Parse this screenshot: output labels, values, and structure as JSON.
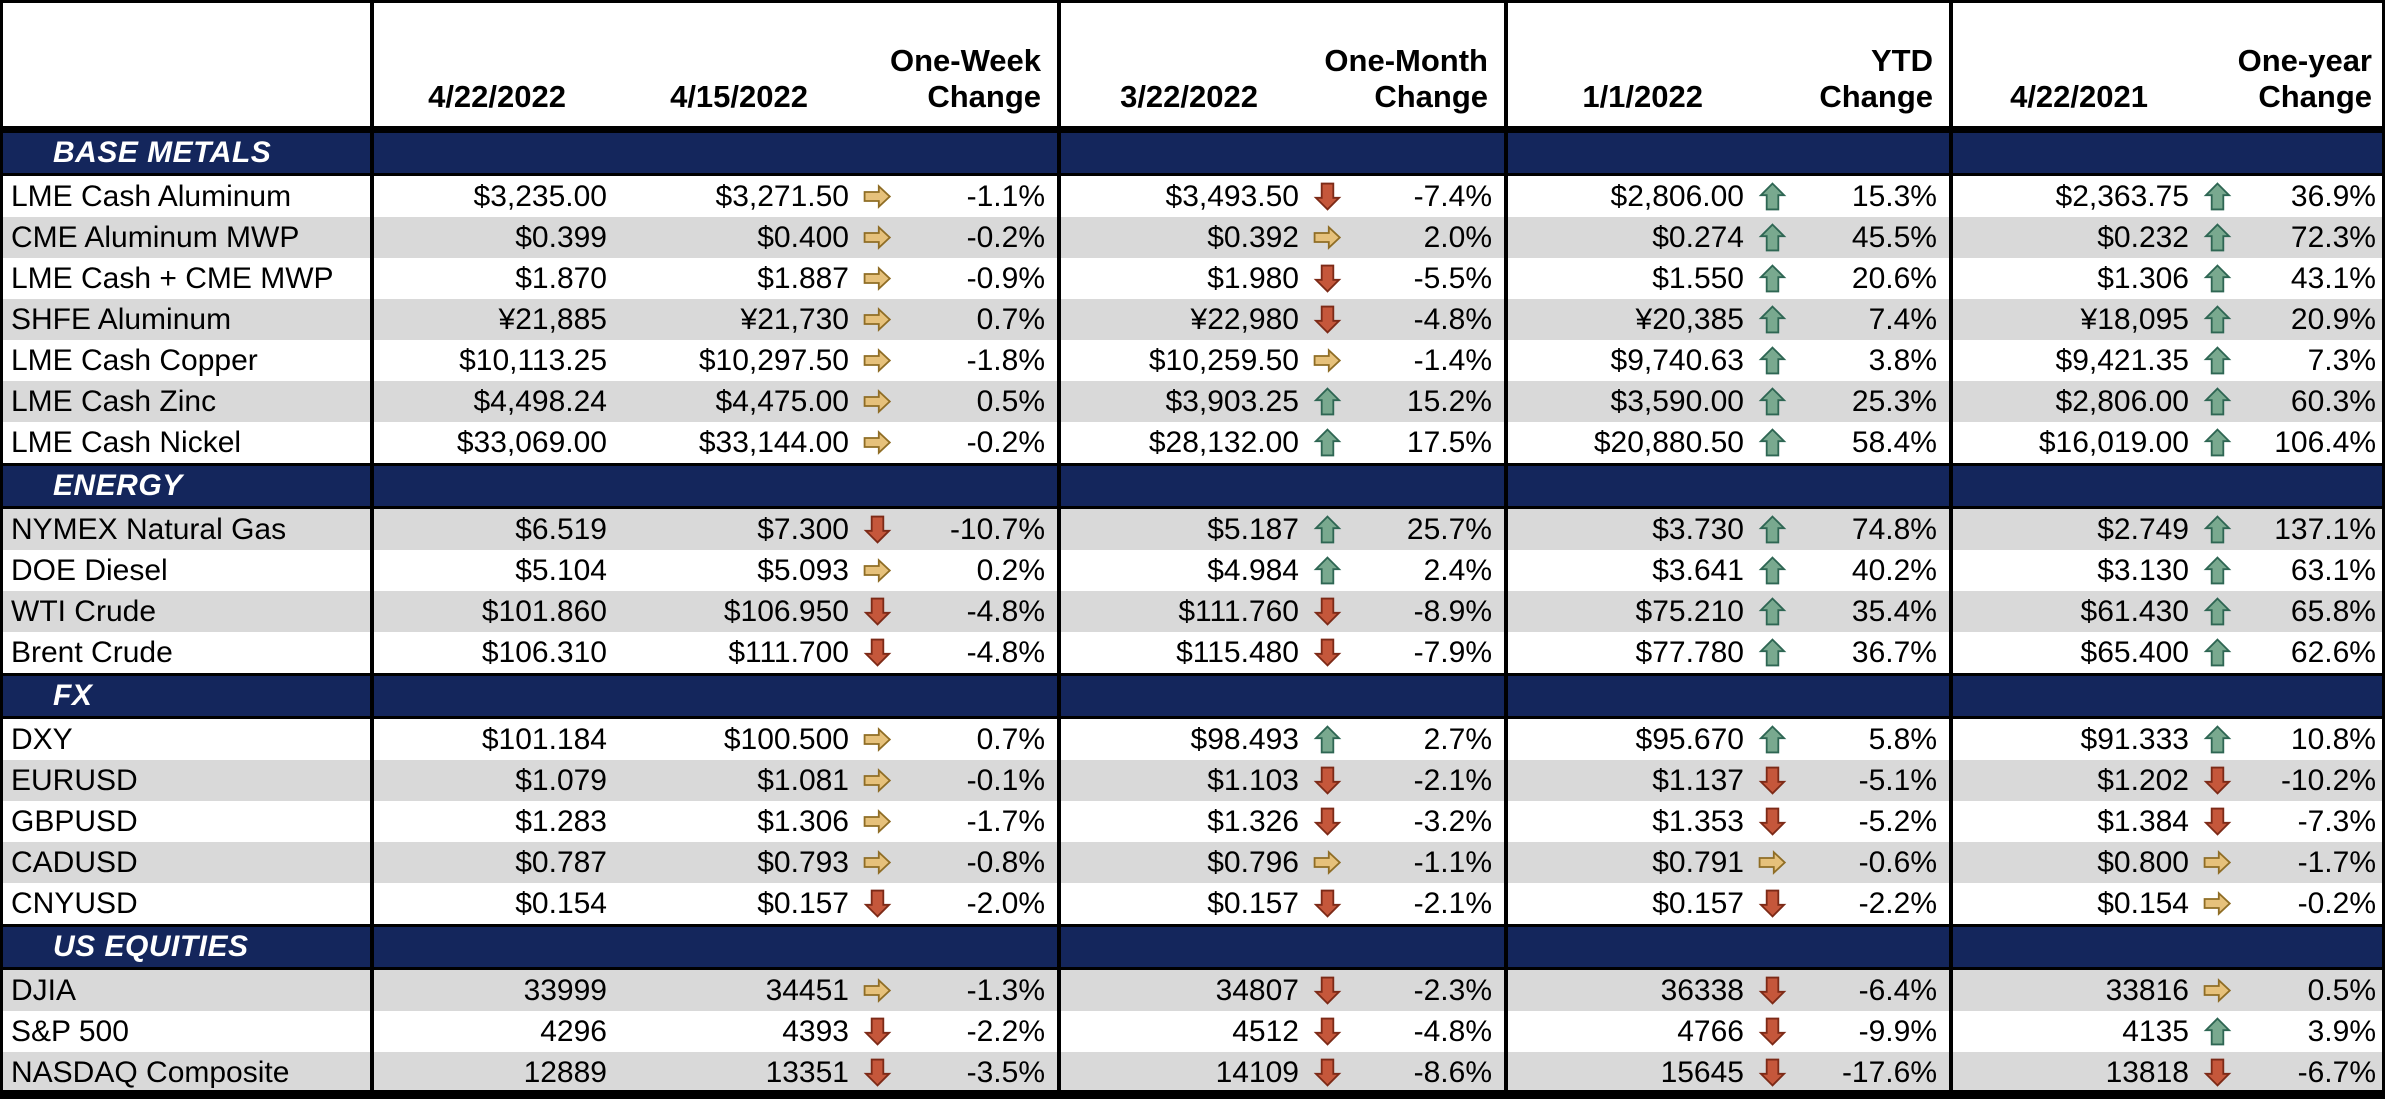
{
  "colors": {
    "section_bar": "#14265C",
    "row_alt_gray": "#D9D9D9",
    "row_white": "#FFFFFF",
    "border": "#000000",
    "arrow_up_fill": "#79A98F",
    "arrow_up_outline": "#2E6653",
    "arrow_down_fill": "#C5573B",
    "arrow_down_outline": "#7C2A17",
    "arrow_flat_fill": "#E6C17B",
    "arrow_flat_outline": "#8F6D25"
  },
  "chart_data": {
    "type": "table",
    "columns": [
      "",
      "4/22/2022",
      "4/15/2022",
      "One-Week Change",
      "3/22/2022",
      "One-Month Change",
      "1/1/2022",
      "YTD Change",
      "4/22/2021",
      "One-year Change"
    ],
    "sections": [
      {
        "label": "BASE METALS",
        "rows": [
          {
            "label": "LME Cash Aluminum",
            "shade": "white",
            "values": [
              "$3,235.00",
              "$3,271.50",
              "$3,493.50",
              "$2,806.00",
              "$2,363.75"
            ],
            "changes": [
              {
                "dir": "flat",
                "pct": "-1.1%"
              },
              {
                "dir": "down",
                "pct": "-7.4%"
              },
              {
                "dir": "up",
                "pct": "15.3%"
              },
              {
                "dir": "up",
                "pct": "36.9%"
              }
            ]
          },
          {
            "label": "CME Aluminum MWP",
            "shade": "gray",
            "values": [
              "$0.399",
              "$0.400",
              "$0.392",
              "$0.274",
              "$0.232"
            ],
            "changes": [
              {
                "dir": "flat",
                "pct": "-0.2%"
              },
              {
                "dir": "flat",
                "pct": "2.0%"
              },
              {
                "dir": "up",
                "pct": "45.5%"
              },
              {
                "dir": "up",
                "pct": "72.3%"
              }
            ]
          },
          {
            "label": "LME Cash + CME MWP",
            "shade": "white",
            "values": [
              "$1.870",
              "$1.887",
              "$1.980",
              "$1.550",
              "$1.306"
            ],
            "changes": [
              {
                "dir": "flat",
                "pct": "-0.9%"
              },
              {
                "dir": "down",
                "pct": "-5.5%"
              },
              {
                "dir": "up",
                "pct": "20.6%"
              },
              {
                "dir": "up",
                "pct": "43.1%"
              }
            ]
          },
          {
            "label": "SHFE Aluminum",
            "shade": "gray",
            "values": [
              "¥21,885",
              "¥21,730",
              "¥22,980",
              "¥20,385",
              "¥18,095"
            ],
            "changes": [
              {
                "dir": "flat",
                "pct": "0.7%"
              },
              {
                "dir": "down",
                "pct": "-4.8%"
              },
              {
                "dir": "up",
                "pct": "7.4%"
              },
              {
                "dir": "up",
                "pct": "20.9%"
              }
            ]
          },
          {
            "label": "LME Cash Copper",
            "shade": "white",
            "values": [
              "$10,113.25",
              "$10,297.50",
              "$10,259.50",
              "$9,740.63",
              "$9,421.35"
            ],
            "changes": [
              {
                "dir": "flat",
                "pct": "-1.8%"
              },
              {
                "dir": "flat",
                "pct": "-1.4%"
              },
              {
                "dir": "up",
                "pct": "3.8%"
              },
              {
                "dir": "up",
                "pct": "7.3%"
              }
            ]
          },
          {
            "label": "LME Cash Zinc",
            "shade": "gray",
            "values": [
              "$4,498.24",
              "$4,475.00",
              "$3,903.25",
              "$3,590.00",
              "$2,806.00"
            ],
            "changes": [
              {
                "dir": "flat",
                "pct": "0.5%"
              },
              {
                "dir": "up",
                "pct": "15.2%"
              },
              {
                "dir": "up",
                "pct": "25.3%"
              },
              {
                "dir": "up",
                "pct": "60.3%"
              }
            ]
          },
          {
            "label": "LME Cash Nickel",
            "shade": "white",
            "values": [
              "$33,069.00",
              "$33,144.00",
              "$28,132.00",
              "$20,880.50",
              "$16,019.00"
            ],
            "changes": [
              {
                "dir": "flat",
                "pct": "-0.2%"
              },
              {
                "dir": "up",
                "pct": "17.5%"
              },
              {
                "dir": "up",
                "pct": "58.4%"
              },
              {
                "dir": "up",
                "pct": "106.4%"
              }
            ]
          }
        ]
      },
      {
        "label": "ENERGY",
        "rows": [
          {
            "label": "NYMEX Natural Gas",
            "shade": "gray",
            "values": [
              "$6.519",
              "$7.300",
              "$5.187",
              "$3.730",
              "$2.749"
            ],
            "changes": [
              {
                "dir": "down",
                "pct": "-10.7%"
              },
              {
                "dir": "up",
                "pct": "25.7%"
              },
              {
                "dir": "up",
                "pct": "74.8%"
              },
              {
                "dir": "up",
                "pct": "137.1%"
              }
            ]
          },
          {
            "label": "DOE Diesel",
            "shade": "white",
            "values": [
              "$5.104",
              "$5.093",
              "$4.984",
              "$3.641",
              "$3.130"
            ],
            "changes": [
              {
                "dir": "flat",
                "pct": "0.2%"
              },
              {
                "dir": "up",
                "pct": "2.4%"
              },
              {
                "dir": "up",
                "pct": "40.2%"
              },
              {
                "dir": "up",
                "pct": "63.1%"
              }
            ]
          },
          {
            "label": "WTI Crude",
            "shade": "gray",
            "values": [
              "$101.860",
              "$106.950",
              "$111.760",
              "$75.210",
              "$61.430"
            ],
            "changes": [
              {
                "dir": "down",
                "pct": "-4.8%"
              },
              {
                "dir": "down",
                "pct": "-8.9%"
              },
              {
                "dir": "up",
                "pct": "35.4%"
              },
              {
                "dir": "up",
                "pct": "65.8%"
              }
            ]
          },
          {
            "label": "Brent Crude",
            "shade": "white",
            "values": [
              "$106.310",
              "$111.700",
              "$115.480",
              "$77.780",
              "$65.400"
            ],
            "changes": [
              {
                "dir": "down",
                "pct": "-4.8%"
              },
              {
                "dir": "down",
                "pct": "-7.9%"
              },
              {
                "dir": "up",
                "pct": "36.7%"
              },
              {
                "dir": "up",
                "pct": "62.6%"
              }
            ]
          }
        ]
      },
      {
        "label": "FX",
        "rows": [
          {
            "label": "DXY",
            "shade": "white",
            "values": [
              "$101.184",
              "$100.500",
              "$98.493",
              "$95.670",
              "$91.333"
            ],
            "changes": [
              {
                "dir": "flat",
                "pct": "0.7%"
              },
              {
                "dir": "up",
                "pct": "2.7%"
              },
              {
                "dir": "up",
                "pct": "5.8%"
              },
              {
                "dir": "up",
                "pct": "10.8%"
              }
            ]
          },
          {
            "label": "EURUSD",
            "shade": "gray",
            "values": [
              "$1.079",
              "$1.081",
              "$1.103",
              "$1.137",
              "$1.202"
            ],
            "changes": [
              {
                "dir": "flat",
                "pct": "-0.1%"
              },
              {
                "dir": "down",
                "pct": "-2.1%"
              },
              {
                "dir": "down",
                "pct": "-5.1%"
              },
              {
                "dir": "down",
                "pct": "-10.2%"
              }
            ]
          },
          {
            "label": "GBPUSD",
            "shade": "white",
            "values": [
              "$1.283",
              "$1.306",
              "$1.326",
              "$1.353",
              "$1.384"
            ],
            "changes": [
              {
                "dir": "flat",
                "pct": "-1.7%"
              },
              {
                "dir": "down",
                "pct": "-3.2%"
              },
              {
                "dir": "down",
                "pct": "-5.2%"
              },
              {
                "dir": "down",
                "pct": "-7.3%"
              }
            ]
          },
          {
            "label": "CADUSD",
            "shade": "gray",
            "values": [
              "$0.787",
              "$0.793",
              "$0.796",
              "$0.791",
              "$0.800"
            ],
            "changes": [
              {
                "dir": "flat",
                "pct": "-0.8%"
              },
              {
                "dir": "flat",
                "pct": "-1.1%"
              },
              {
                "dir": "flat",
                "pct": "-0.6%"
              },
              {
                "dir": "flat",
                "pct": "-1.7%"
              }
            ]
          },
          {
            "label": "CNYUSD",
            "shade": "white",
            "values": [
              "$0.154",
              "$0.157",
              "$0.157",
              "$0.157",
              "$0.154"
            ],
            "changes": [
              {
                "dir": "down",
                "pct": "-2.0%"
              },
              {
                "dir": "down",
                "pct": "-2.1%"
              },
              {
                "dir": "down",
                "pct": "-2.2%"
              },
              {
                "dir": "flat",
                "pct": "-0.2%"
              }
            ]
          }
        ]
      },
      {
        "label": "US EQUITIES",
        "rows": [
          {
            "label": "DJIA",
            "shade": "gray",
            "values": [
              "33999",
              "34451",
              "34807",
              "36338",
              "33816"
            ],
            "changes": [
              {
                "dir": "flat",
                "pct": "-1.3%"
              },
              {
                "dir": "down",
                "pct": "-2.3%"
              },
              {
                "dir": "down",
                "pct": "-6.4%"
              },
              {
                "dir": "flat",
                "pct": "0.5%"
              }
            ]
          },
          {
            "label": "S&P 500",
            "shade": "white",
            "values": [
              "4296",
              "4393",
              "4512",
              "4766",
              "4135"
            ],
            "changes": [
              {
                "dir": "down",
                "pct": "-2.2%"
              },
              {
                "dir": "down",
                "pct": "-4.8%"
              },
              {
                "dir": "down",
                "pct": "-9.9%"
              },
              {
                "dir": "up",
                "pct": "3.9%"
              }
            ]
          },
          {
            "label": "NASDAQ Composite",
            "shade": "gray",
            "values": [
              "12889",
              "13351",
              "14109",
              "15645",
              "13818"
            ],
            "changes": [
              {
                "dir": "down",
                "pct": "-3.5%"
              },
              {
                "dir": "down",
                "pct": "-8.6%"
              },
              {
                "dir": "down",
                "pct": "-17.6%"
              },
              {
                "dir": "down",
                "pct": "-6.7%"
              }
            ]
          }
        ]
      }
    ]
  }
}
